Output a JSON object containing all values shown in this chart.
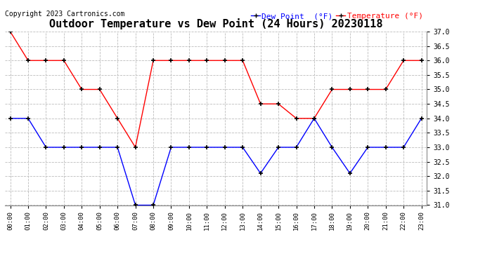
{
  "title": "Outdoor Temperature vs Dew Point (24 Hours) 20230118",
  "copyright_text": "Copyright 2023 Cartronics.com",
  "legend_dew": "Dew Point  (°F)",
  "legend_temp": "Temperature (°F)",
  "hours": [
    0,
    1,
    2,
    3,
    4,
    5,
    6,
    7,
    8,
    9,
    10,
    11,
    12,
    13,
    14,
    15,
    16,
    17,
    18,
    19,
    20,
    21,
    22,
    23
  ],
  "temperature": [
    37.0,
    36.0,
    36.0,
    36.0,
    35.0,
    35.0,
    34.0,
    33.0,
    36.0,
    36.0,
    36.0,
    36.0,
    36.0,
    36.0,
    34.5,
    34.5,
    34.0,
    34.0,
    35.0,
    35.0,
    35.0,
    35.0,
    36.0,
    36.0
  ],
  "dew_point": [
    34.0,
    34.0,
    33.0,
    33.0,
    33.0,
    33.0,
    33.0,
    31.0,
    31.0,
    33.0,
    33.0,
    33.0,
    33.0,
    33.0,
    32.1,
    33.0,
    33.0,
    34.0,
    33.0,
    32.1,
    33.0,
    33.0,
    33.0,
    34.0
  ],
  "ylim_min": 31.0,
  "ylim_max": 37.0,
  "ytick_step": 0.5,
  "temp_color": "red",
  "dew_color": "blue",
  "marker": "+",
  "marker_color": "black",
  "grid_color": "#bbbbbb",
  "background_color": "white",
  "title_fontsize": 11,
  "legend_fontsize": 8,
  "copyright_fontsize": 7
}
